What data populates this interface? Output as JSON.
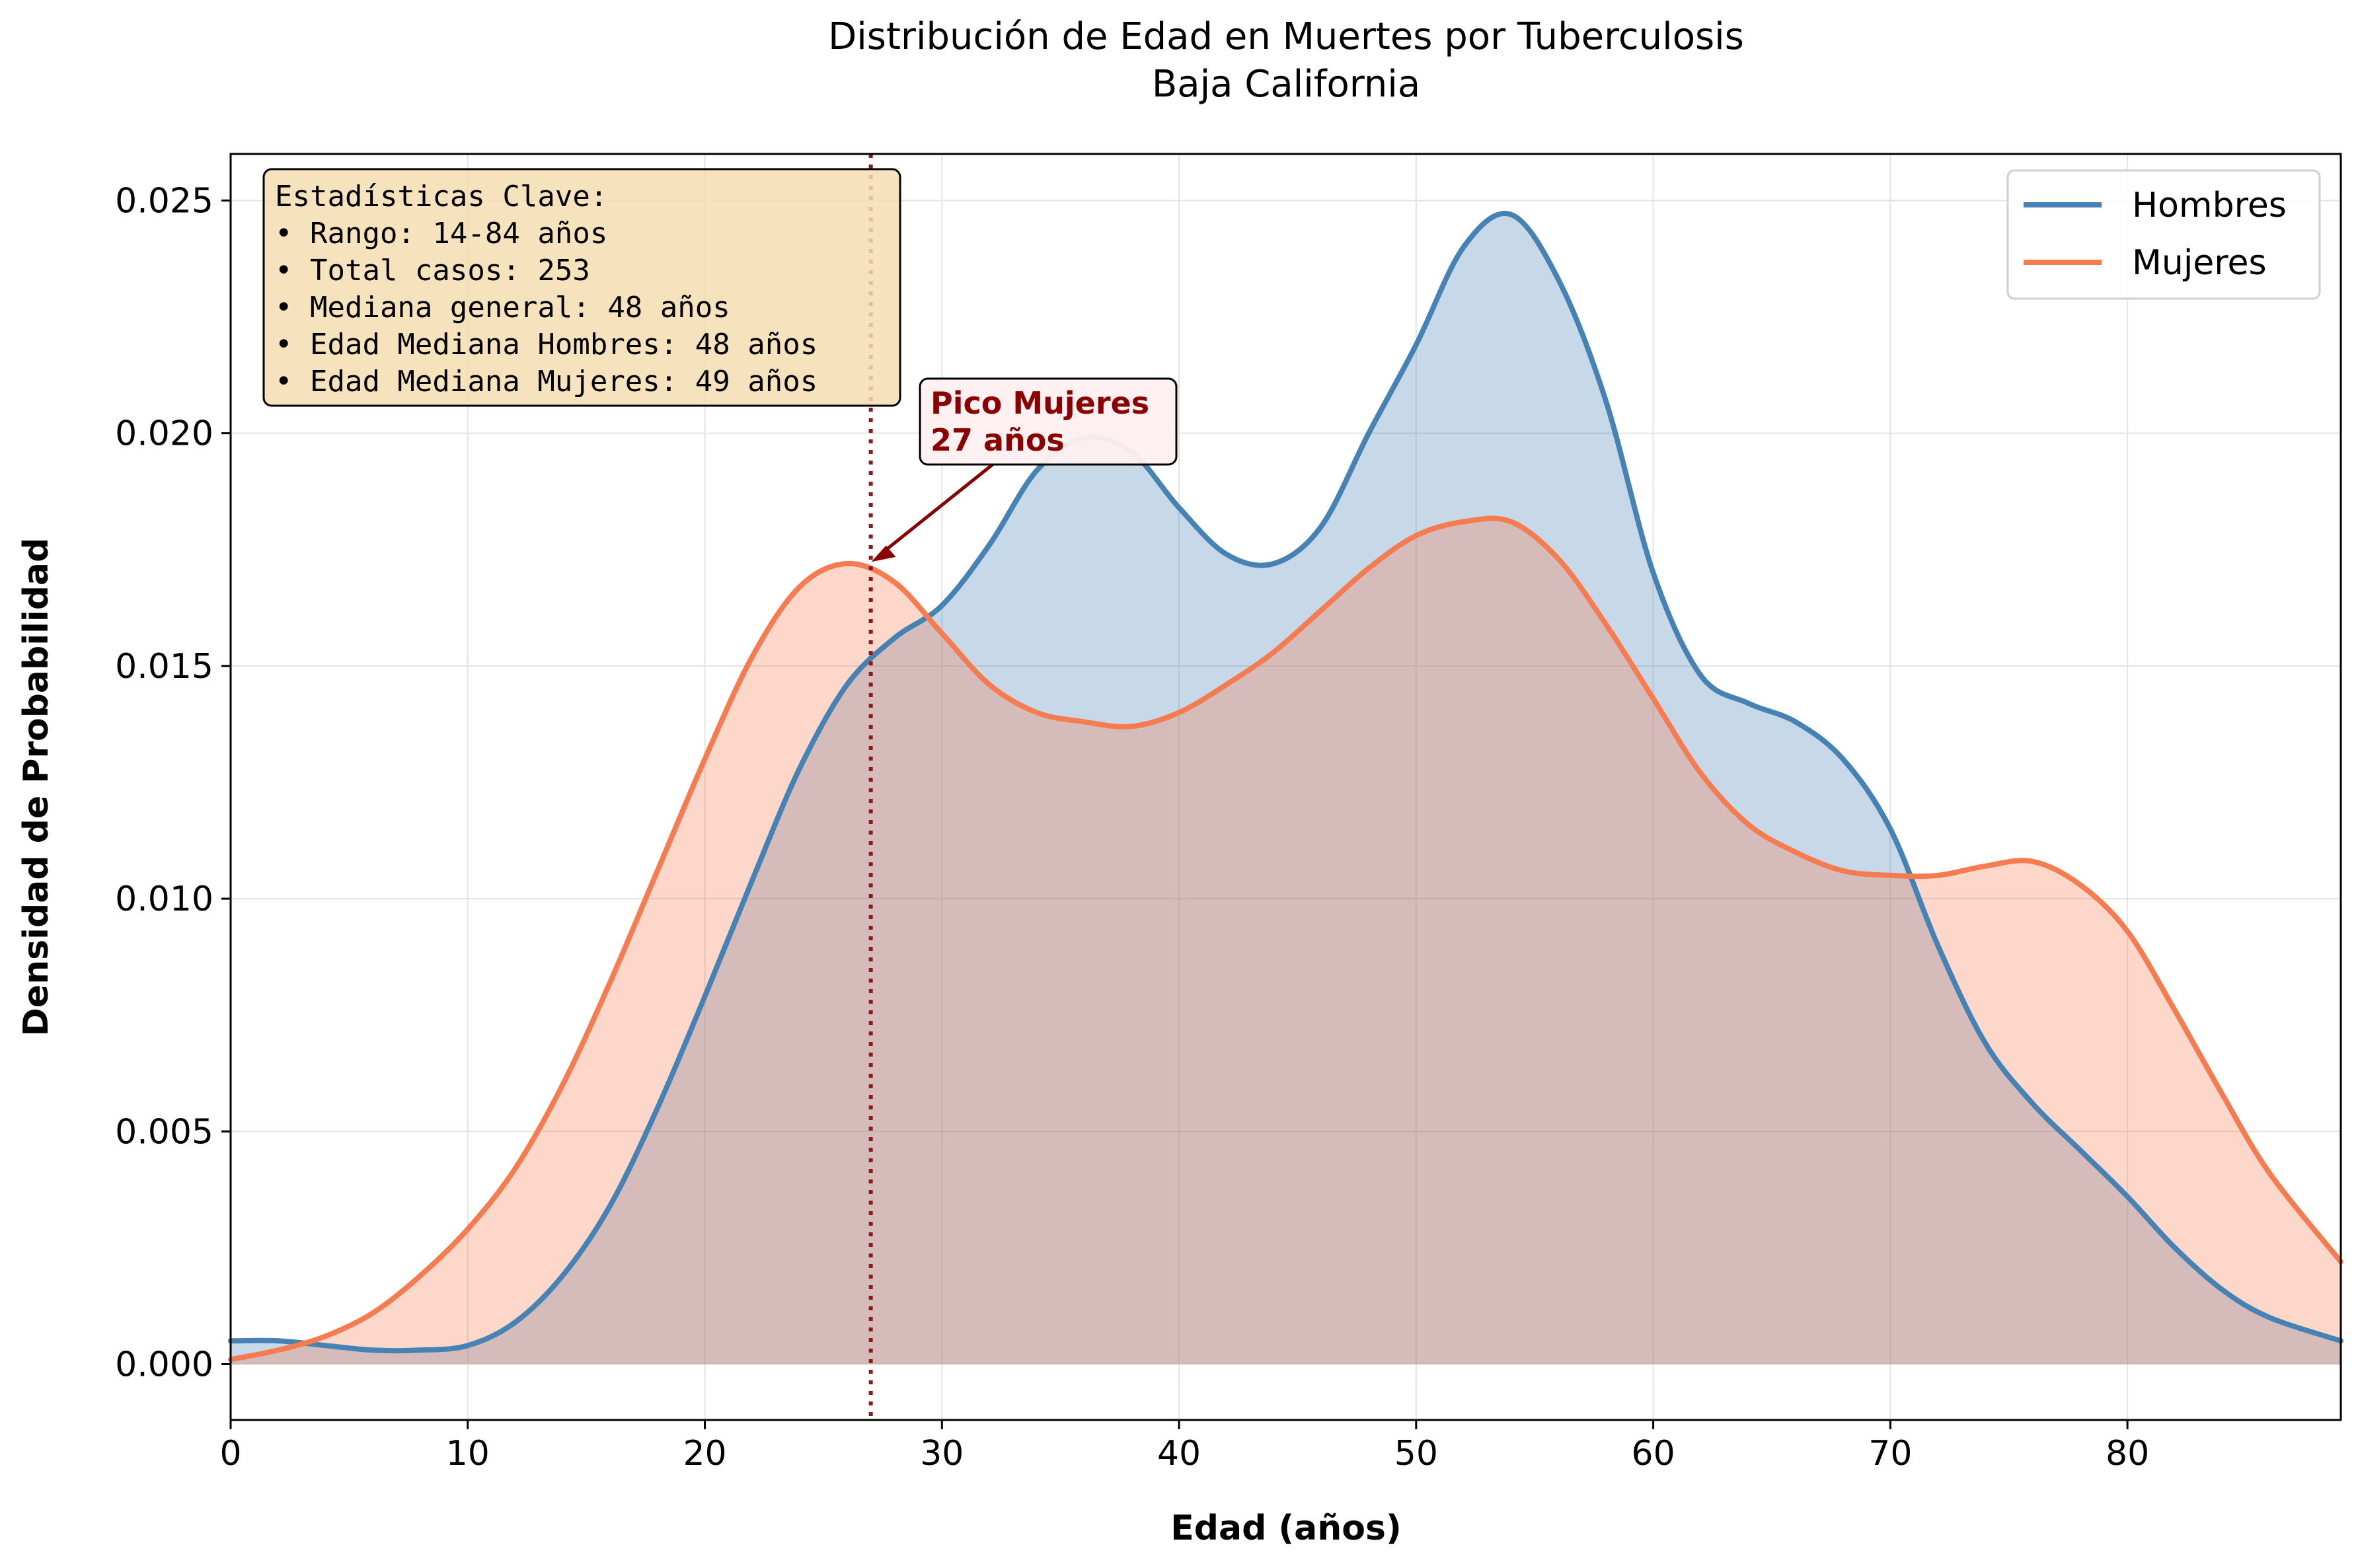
{
  "chart_data": {
    "type": "area",
    "title": "Distribución de Edad en Muertes por Tuberculosis",
    "subtitle": "Baja California",
    "xlabel": "Edad (años)",
    "ylabel": "Densidad de Probabilidad",
    "xlim": [
      0,
      89
    ],
    "ylim": [
      -0.0012,
      0.026
    ],
    "xticks": [
      0,
      10,
      20,
      30,
      40,
      50,
      60,
      70,
      80
    ],
    "yticks": [
      0,
      0.005,
      0.01,
      0.015,
      0.02,
      0.025
    ],
    "xtick_labels": [
      "0",
      "10",
      "20",
      "30",
      "40",
      "50",
      "60",
      "70",
      "80"
    ],
    "ytick_labels": [
      "0.000",
      "0.005",
      "0.010",
      "0.015",
      "0.020",
      "0.025"
    ],
    "grid": true,
    "legend_position": "top-right",
    "series": [
      {
        "name": "Hombres",
        "color": "#4682b4",
        "x": [
          0,
          2,
          4,
          6,
          8,
          10,
          12,
          14,
          16,
          18,
          20,
          22,
          24,
          26,
          28,
          30,
          32,
          34,
          36,
          38,
          40,
          42,
          44,
          46,
          48,
          50,
          52,
          54,
          56,
          58,
          60,
          62,
          64,
          66,
          68,
          70,
          72,
          74,
          76,
          78,
          80,
          82,
          84,
          86,
          89
        ],
        "y": [
          0.0005,
          0.0005,
          0.0004,
          0.0003,
          0.0003,
          0.0004,
          0.0009,
          0.0019,
          0.0034,
          0.0055,
          0.0079,
          0.0104,
          0.0128,
          0.0146,
          0.0156,
          0.0163,
          0.0176,
          0.0192,
          0.0199,
          0.0196,
          0.0184,
          0.0174,
          0.0172,
          0.018,
          0.02,
          0.0219,
          0.024,
          0.0247,
          0.0233,
          0.0207,
          0.017,
          0.0148,
          0.0142,
          0.0138,
          0.013,
          0.0115,
          0.009,
          0.0069,
          0.0056,
          0.0046,
          0.0036,
          0.0025,
          0.0016,
          0.001,
          0.0005
        ]
      },
      {
        "name": "Mujeres",
        "color": "#f47c50",
        "x": [
          0,
          2,
          4,
          6,
          8,
          10,
          12,
          14,
          16,
          18,
          20,
          22,
          24,
          26,
          28,
          30,
          32,
          34,
          36,
          38,
          40,
          42,
          44,
          46,
          48,
          50,
          52,
          54,
          56,
          58,
          60,
          62,
          64,
          66,
          68,
          70,
          72,
          74,
          76,
          78,
          80,
          82,
          84,
          86,
          89
        ],
        "y": [
          0.0001,
          0.0003,
          0.0006,
          0.0011,
          0.0019,
          0.0029,
          0.0042,
          0.006,
          0.0082,
          0.0106,
          0.013,
          0.0152,
          0.0167,
          0.0172,
          0.0168,
          0.0157,
          0.0146,
          0.014,
          0.0138,
          0.0137,
          0.014,
          0.0146,
          0.0153,
          0.0162,
          0.0171,
          0.0178,
          0.0181,
          0.0181,
          0.0173,
          0.0159,
          0.0143,
          0.0127,
          0.0116,
          0.011,
          0.0106,
          0.0105,
          0.0105,
          0.0107,
          0.0108,
          0.0103,
          0.0093,
          0.0076,
          0.0058,
          0.0041,
          0.0022
        ]
      }
    ],
    "reference_line": {
      "x": 27,
      "color": "#8b1a1a"
    },
    "annotation": {
      "lines": [
        "Pico Mujeres",
        "27 años"
      ],
      "color": "#8b0000",
      "target": {
        "x": 27,
        "y": 0.0172
      }
    },
    "stats_box": {
      "lines": [
        "Estadísticas Clave:",
        "• Rango: 14-84 años",
        "• Total casos: 253",
        "• Mediana general: 48 años",
        "• Edad Mediana Hombres: 48 años",
        "• Edad Mediana Mujeres: 49 años"
      ],
      "background": "#f5deb3"
    }
  }
}
